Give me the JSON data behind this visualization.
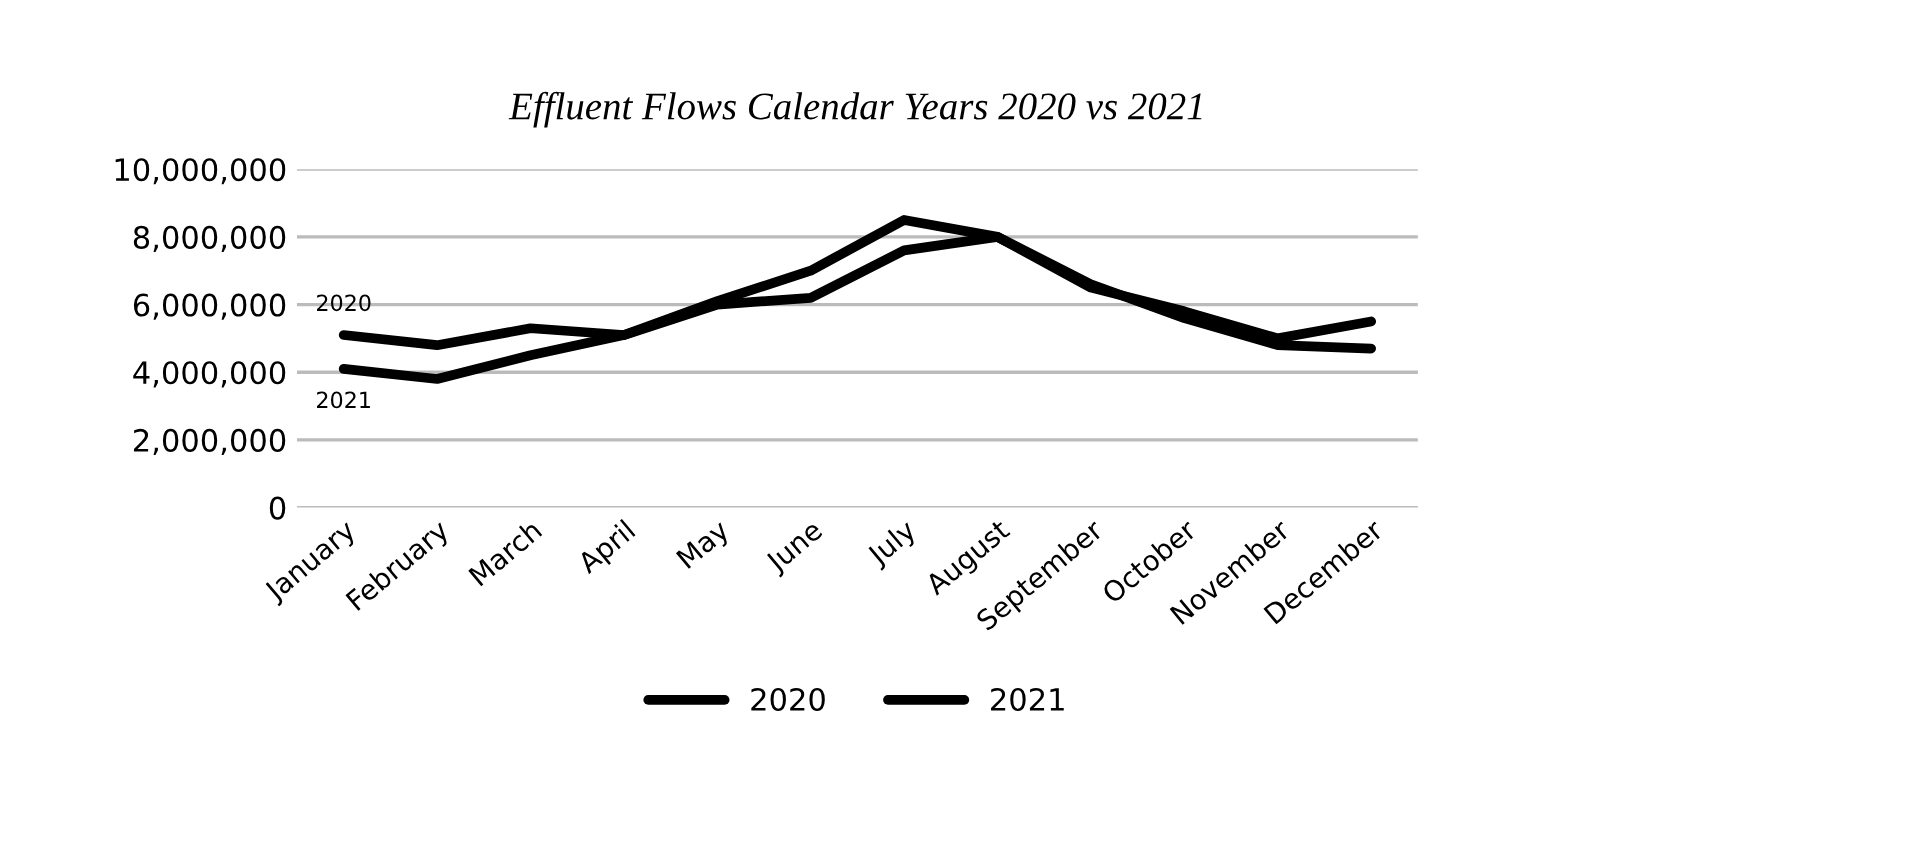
{
  "chart_data": {
    "type": "line",
    "title": "Effluent Flows Calendar Years 2020 vs 2021",
    "categories": [
      "January",
      "February",
      "March",
      "April",
      "May",
      "June",
      "July",
      "August",
      "September",
      "October",
      "November",
      "December"
    ],
    "series": [
      {
        "name": "2020",
        "color": "#000000",
        "values": [
          5100000,
          4800000,
          5300000,
          5100000,
          6000000,
          6200000,
          7600000,
          8000000,
          6500000,
          5800000,
          5000000,
          5500000
        ]
      },
      {
        "name": "2021",
        "color": "#000000",
        "values": [
          4100000,
          3800000,
          4500000,
          5100000,
          6100000,
          7000000,
          8500000,
          8000000,
          6600000,
          5600000,
          4800000,
          4700000
        ]
      }
    ],
    "annotations": [
      {
        "text": "2020",
        "x": "January",
        "y": 5100000
      },
      {
        "text": "2021",
        "x": "January",
        "y": 4100000
      }
    ],
    "ylim": [
      0,
      10000000
    ],
    "yticks": [
      {
        "value": 0,
        "label": "0"
      },
      {
        "value": 2000000,
        "label": "2,000,000"
      },
      {
        "value": 4000000,
        "label": "4,000,000"
      },
      {
        "value": 6000000,
        "label": "6,000,000"
      },
      {
        "value": 8000000,
        "label": "8,000,000"
      },
      {
        "value": 10000000,
        "label": "10,000,000"
      }
    ],
    "grid": "y",
    "legend": "bottom",
    "line_style": "solid",
    "marker": "none"
  }
}
